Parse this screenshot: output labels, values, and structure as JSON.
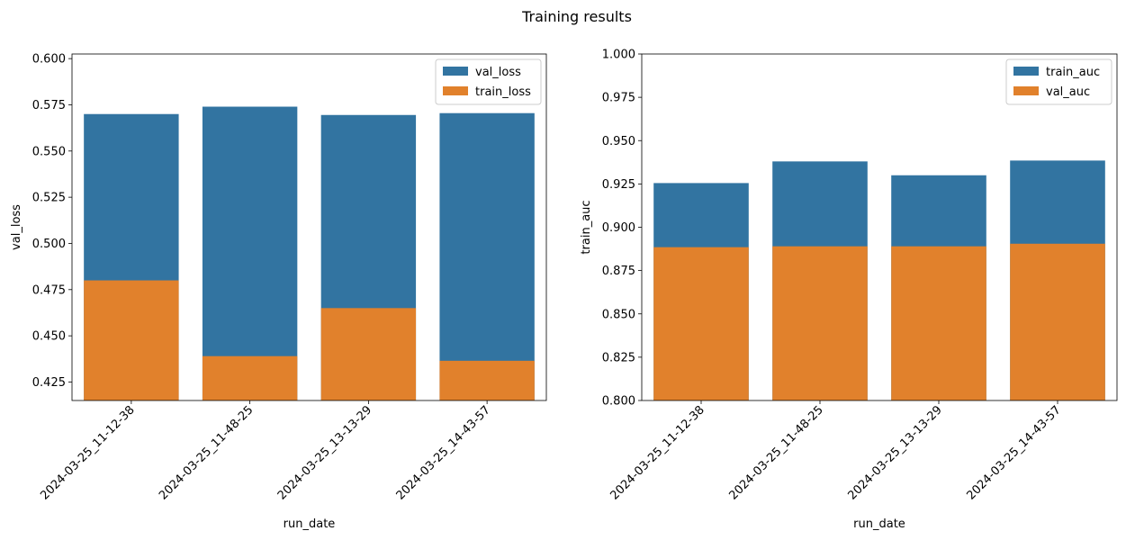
{
  "figure_title": "Training results",
  "chart_data": [
    {
      "type": "bar",
      "stacking": "overlay",
      "categories": [
        "2024-03-25_11-12-38",
        "2024-03-25_11-48-25",
        "2024-03-25_13-13-29",
        "2024-03-25_14-43-57"
      ],
      "series": [
        {
          "name": "val_loss",
          "color": "#3274a1",
          "values": [
            0.57,
            0.574,
            0.5695,
            0.5705
          ]
        },
        {
          "name": "train_loss",
          "color": "#e1812c",
          "values": [
            0.48,
            0.439,
            0.465,
            0.4365
          ]
        }
      ],
      "xlabel": "run_date",
      "ylabel": "val_loss",
      "ylim": [
        0.415,
        0.6025
      ],
      "yticks": [
        "0.425",
        "0.450",
        "0.475",
        "0.500",
        "0.525",
        "0.550",
        "0.575",
        "0.600"
      ],
      "legend": "top-right",
      "grid": false
    },
    {
      "type": "bar",
      "stacking": "overlay",
      "categories": [
        "2024-03-25_11-12-38",
        "2024-03-25_11-48-25",
        "2024-03-25_13-13-29",
        "2024-03-25_14-43-57"
      ],
      "series": [
        {
          "name": "train_auc",
          "color": "#3274a1",
          "values": [
            0.9255,
            0.938,
            0.93,
            0.9385
          ]
        },
        {
          "name": "val_auc",
          "color": "#e1812c",
          "values": [
            0.8885,
            0.889,
            0.889,
            0.8905
          ]
        }
      ],
      "xlabel": "run_date",
      "ylabel": "train_auc",
      "ylim": [
        0.8,
        1.0
      ],
      "yticks": [
        "0.800",
        "0.825",
        "0.850",
        "0.875",
        "0.900",
        "0.925",
        "0.950",
        "0.975",
        "1.000"
      ],
      "legend": "top-right",
      "grid": false
    }
  ]
}
